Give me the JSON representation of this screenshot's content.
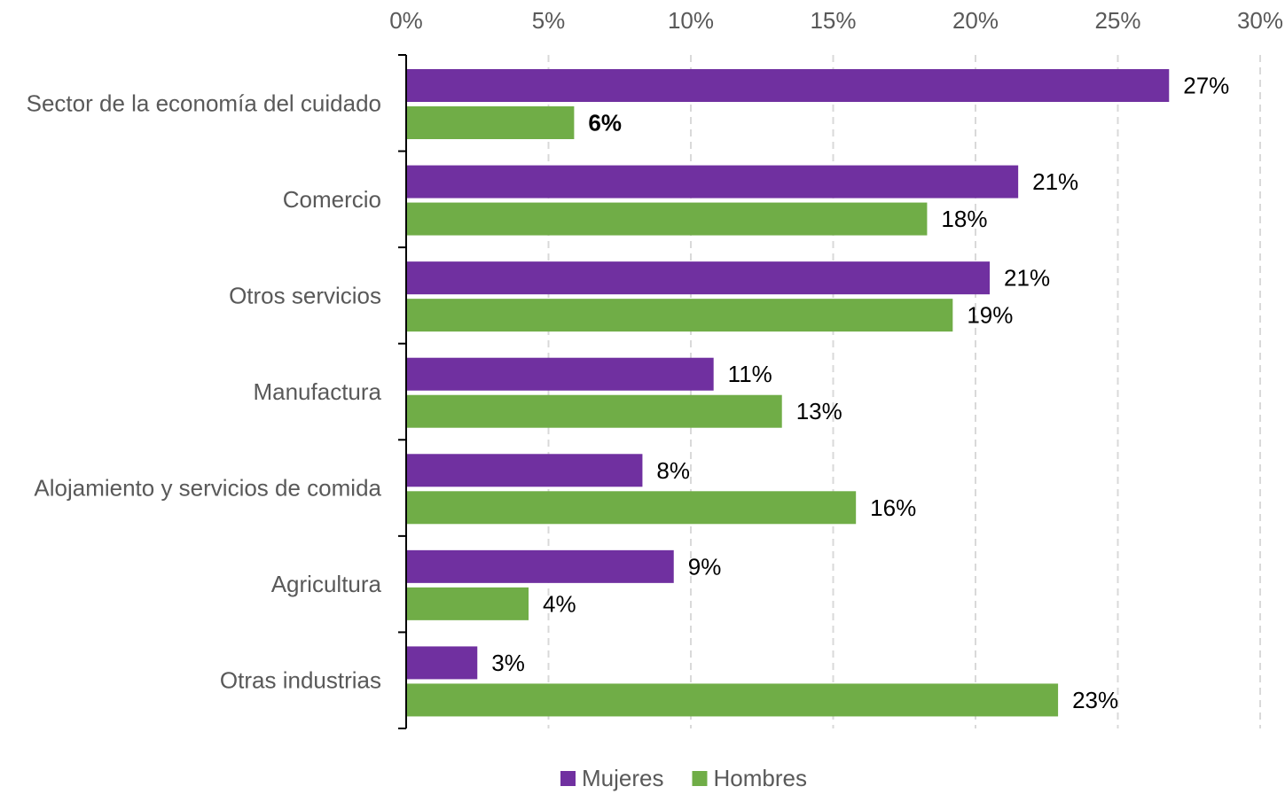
{
  "chart_data": {
    "type": "bar",
    "orientation": "horizontal",
    "categories": [
      "Sector de la economía del cuidado",
      "Comercio",
      "Otros servicios",
      "Manufactura",
      "Alojamiento y servicios de comida",
      "Agricultura",
      "Otras industrias"
    ],
    "series": [
      {
        "name": "Mujeres",
        "color": "#7030a0",
        "values": [
          26.8,
          21.5,
          20.5,
          10.8,
          8.3,
          9.4,
          2.5
        ],
        "labels": [
          "27%",
          "21%",
          "21%",
          "11%",
          "8%",
          "9%",
          "3%"
        ]
      },
      {
        "name": "Hombres",
        "color": "#70ad47",
        "values": [
          5.9,
          18.3,
          19.2,
          13.2,
          15.8,
          4.3,
          22.9
        ],
        "labels": [
          "6%",
          "18%",
          "19%",
          "13%",
          "16%",
          "4%",
          "23%"
        ]
      }
    ],
    "xlim": [
      0,
      30
    ],
    "x_ticks": [
      "0%",
      "5%",
      "10%",
      "15%",
      "20%",
      "25%",
      "30%"
    ],
    "x_axis_position": "top",
    "grid": "vertical dashed",
    "legend_position": "bottom-center",
    "title": "",
    "xlabel": "",
    "ylabel": ""
  }
}
